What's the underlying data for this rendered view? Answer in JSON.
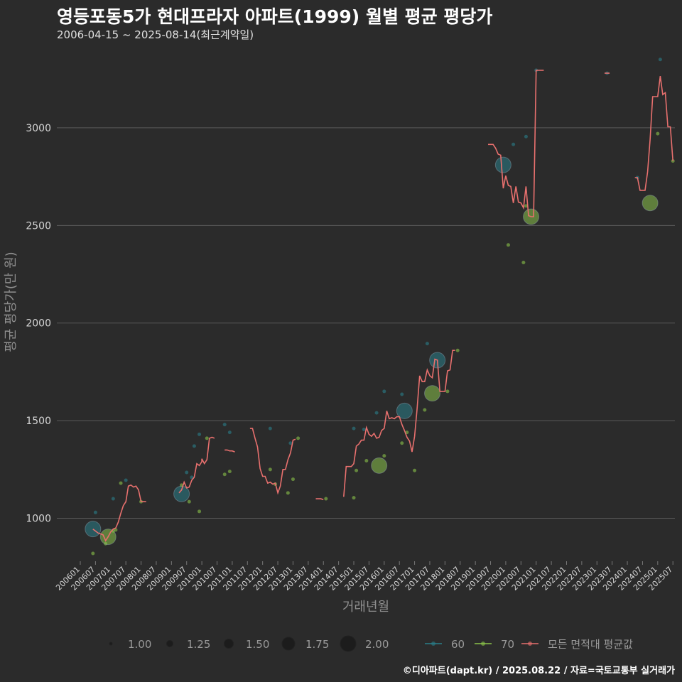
{
  "title": "영등포동5가 현대프라자 아파트(1999) 월별 평균 평당가",
  "subtitle": "2006-04-15 ~ 2025-08-14(최근계약일)",
  "credit": "©디아파트(dapt.kr) / 2025.08.22 / 자료=국토교통부 실거래가",
  "colors": {
    "background": "#2b2b2b",
    "grid": "#5a5a5a",
    "s60": "#2a7f8a",
    "s70": "#8bc34a",
    "avg": "#e8706e"
  },
  "legend": {
    "size_items": [
      {
        "label": "1.00"
      },
      {
        "label": "1.25"
      },
      {
        "label": "1.50"
      },
      {
        "label": "1.75"
      },
      {
        "label": "2.00"
      }
    ],
    "series_items": [
      {
        "label": "60"
      },
      {
        "label": "70"
      },
      {
        "label": "모든 면적대 평균값"
      }
    ]
  },
  "chart_data": {
    "type": "line",
    "title": "영등포동5가 현대프라자 아파트(1999) 월별 평균 평당가",
    "xlabel": "거래년월",
    "ylabel": "평균 평당가(만 원)",
    "ylim": [
      780,
      3400
    ],
    "yticks": [
      1000,
      1500,
      2000,
      2500,
      3000
    ],
    "xticks": [
      "200601",
      "200607",
      "200701",
      "200707",
      "200801",
      "200807",
      "200901",
      "200907",
      "201001",
      "201007",
      "201101",
      "201107",
      "201201",
      "201207",
      "201301",
      "201307",
      "201401",
      "201407",
      "201501",
      "201507",
      "201601",
      "201607",
      "201701",
      "201707",
      "201801",
      "201807",
      "201901",
      "201907",
      "202001",
      "202007",
      "202101",
      "202107",
      "202201",
      "202207",
      "202301",
      "202307",
      "202401",
      "202407",
      "202501",
      "202507"
    ],
    "grid": true,
    "legend_position": "bottom",
    "series": [
      {
        "name": "60",
        "points": [
          [
            "2006-06",
            945,
            2
          ],
          [
            "2006-07",
            1030,
            1
          ],
          [
            "2007-02",
            1100,
            1
          ],
          [
            "2007-07",
            1195,
            1
          ],
          [
            "2009-05",
            1125,
            2
          ],
          [
            "2009-07",
            1235,
            1
          ],
          [
            "2009-09",
            1210,
            1
          ],
          [
            "2009-10",
            1370,
            1
          ],
          [
            "2009-12",
            1430,
            1
          ],
          [
            "2010-10",
            1480,
            1
          ],
          [
            "2010-12",
            1440,
            1
          ],
          [
            "2012-04",
            1460,
            1
          ],
          [
            "2012-12",
            1385,
            1
          ],
          [
            "2015-01",
            1460,
            1
          ],
          [
            "2015-05",
            1455,
            1
          ],
          [
            "2015-10",
            1540,
            1
          ],
          [
            "2016-01",
            1650,
            1
          ],
          [
            "2016-08",
            1635,
            1
          ],
          [
            "2016-09",
            1550,
            2
          ],
          [
            "2017-06",
            1895,
            1
          ],
          [
            "2017-10",
            1810,
            2
          ],
          [
            "2019-12",
            2810,
            2
          ],
          [
            "2020-04",
            2915,
            1
          ],
          [
            "2020-09",
            2955,
            1
          ],
          [
            "2021-01",
            3295,
            1
          ],
          [
            "2023-05",
            3280,
            1
          ],
          [
            "2024-05",
            2745,
            1
          ],
          [
            "2025-02",
            3350,
            1
          ]
        ]
      },
      {
        "name": "70",
        "points": [
          [
            "2006-06",
            820,
            1
          ],
          [
            "2006-11",
            870,
            1
          ],
          [
            "2006-12",
            905,
            2
          ],
          [
            "2007-02",
            935,
            1
          ],
          [
            "2007-03",
            940,
            1
          ],
          [
            "2007-05",
            1180,
            1
          ],
          [
            "2008-01",
            1085,
            1
          ],
          [
            "2009-05",
            1170,
            1
          ],
          [
            "2009-08",
            1085,
            1
          ],
          [
            "2009-12",
            1035,
            1
          ],
          [
            "2010-03",
            1410,
            1
          ],
          [
            "2010-10",
            1225,
            1
          ],
          [
            "2010-12",
            1240,
            1
          ],
          [
            "2012-04",
            1250,
            1
          ],
          [
            "2012-06",
            1175,
            1
          ],
          [
            "2012-11",
            1130,
            1
          ],
          [
            "2013-01",
            1200,
            1
          ],
          [
            "2013-03",
            1410,
            1
          ],
          [
            "2014-02",
            1100,
            1
          ],
          [
            "2015-01",
            1105,
            1
          ],
          [
            "2015-02",
            1245,
            1
          ],
          [
            "2015-06",
            1295,
            1
          ],
          [
            "2015-11",
            1270,
            2
          ],
          [
            "2016-01",
            1320,
            1
          ],
          [
            "2016-08",
            1385,
            1
          ],
          [
            "2016-10",
            1440,
            1
          ],
          [
            "2017-01",
            1245,
            1
          ],
          [
            "2017-05",
            1555,
            1
          ],
          [
            "2017-08",
            1640,
            2
          ],
          [
            "2018-02",
            1650,
            1
          ],
          [
            "2018-06",
            1860,
            1
          ],
          [
            "2020-02",
            2400,
            1
          ],
          [
            "2020-08",
            2310,
            1
          ],
          [
            "2020-09",
            2600,
            1
          ],
          [
            "2020-11",
            2545,
            2
          ],
          [
            "2024-10",
            2615,
            2
          ],
          [
            "2025-01",
            2970,
            1
          ],
          [
            "2025-07",
            2830,
            1
          ]
        ]
      },
      {
        "name": "모든 면적대 평균값",
        "points": [
          [
            "2006-06",
            945
          ],
          [
            "2006-08",
            925
          ],
          [
            "2006-10",
            915
          ],
          [
            "2006-11",
            885
          ],
          [
            "2006-12",
            905
          ],
          [
            "2007-01",
            930
          ],
          [
            "2007-02",
            945
          ],
          [
            "2007-03",
            950
          ],
          [
            "2007-04",
            980
          ],
          [
            "2007-05",
            1025
          ],
          [
            "2007-06",
            1065
          ],
          [
            "2007-07",
            1085
          ],
          [
            "2007-08",
            1165
          ],
          [
            "2007-09",
            1170
          ],
          [
            "2007-10",
            1160
          ],
          [
            "2007-11",
            1165
          ],
          [
            "2007-12",
            1145
          ],
          [
            "2008-01",
            1085
          ],
          [
            "2008-02",
            1085
          ],
          [
            "2008-03",
            1085
          ],
          null,
          [
            "2009-04",
            1130
          ],
          [
            "2009-05",
            1145
          ],
          [
            "2009-06",
            1185
          ],
          [
            "2009-07",
            1155
          ],
          [
            "2009-08",
            1160
          ],
          [
            "2009-09",
            1195
          ],
          [
            "2009-10",
            1210
          ],
          [
            "2009-11",
            1280
          ],
          [
            "2009-12",
            1270
          ],
          [
            "2009-13",
            1290
          ],
          [
            "2010-01",
            1305
          ],
          [
            "2010-02",
            1280
          ],
          [
            "2010-03",
            1300
          ],
          [
            "2010-04",
            1410
          ],
          [
            "2010-05",
            1415
          ],
          [
            "2010-06",
            1410
          ],
          null,
          [
            "2010-10",
            1350
          ],
          [
            "2010-11",
            1350
          ],
          [
            "2010-12",
            1345
          ],
          [
            "2011-01",
            1345
          ],
          [
            "2011-02",
            1340
          ],
          null,
          [
            "2011-08",
            1460
          ],
          [
            "2011-09",
            1460
          ],
          [
            "2011-10",
            1410
          ],
          [
            "2011-11",
            1365
          ],
          [
            "2011-12",
            1255
          ],
          [
            "2012-01",
            1215
          ],
          [
            "2012-02",
            1215
          ],
          [
            "2012-03",
            1180
          ],
          [
            "2012-04",
            1185
          ],
          [
            "2012-05",
            1175
          ],
          [
            "2012-06",
            1180
          ],
          [
            "2012-07",
            1130
          ],
          [
            "2012-08",
            1165
          ],
          [
            "2012-09",
            1250
          ],
          [
            "2012-10",
            1250
          ],
          [
            "2012-11",
            1300
          ],
          [
            "2012-12",
            1335
          ],
          [
            "2013-01",
            1400
          ],
          [
            "2013-02",
            1405
          ],
          null,
          [
            "2013-10",
            1100
          ],
          [
            "2013-11",
            1100
          ],
          [
            "2013-12",
            1100
          ],
          [
            "2014-01",
            1095
          ],
          null,
          [
            "2014-09",
            1110
          ],
          [
            "2014-10",
            1265
          ],
          [
            "2014-11",
            1265
          ],
          [
            "2014-12",
            1265
          ],
          [
            "2015-01",
            1280
          ],
          [
            "2015-02",
            1370
          ],
          [
            "2015-03",
            1380
          ],
          [
            "2015-04",
            1400
          ],
          [
            "2015-05",
            1400
          ],
          [
            "2015-06",
            1465
          ],
          [
            "2015-07",
            1430
          ],
          [
            "2015-08",
            1420
          ],
          [
            "2015-09",
            1435
          ],
          [
            "2015-10",
            1410
          ],
          [
            "2015-11",
            1415
          ],
          [
            "2015-12",
            1450
          ],
          [
            "2016-01",
            1460
          ],
          [
            "2016-02",
            1550
          ],
          [
            "2016-03",
            1510
          ],
          [
            "2016-04",
            1515
          ],
          [
            "2016-05",
            1510
          ],
          [
            "2016-06",
            1520
          ],
          [
            "2016-07",
            1520
          ],
          [
            "2016-08",
            1480
          ],
          [
            "2016-09",
            1450
          ],
          [
            "2016-10",
            1415
          ],
          [
            "2016-11",
            1395
          ],
          [
            "2016-12",
            1340
          ],
          [
            "2017-01",
            1420
          ],
          [
            "2017-02",
            1560
          ],
          [
            "2017-03",
            1730
          ],
          [
            "2017-04",
            1700
          ],
          [
            "2017-05",
            1700
          ],
          [
            "2017-06",
            1760
          ],
          [
            "2017-07",
            1730
          ],
          [
            "2017-08",
            1720
          ],
          [
            "2017-09",
            1815
          ],
          [
            "2017-10",
            1810
          ],
          [
            "2017-11",
            1650
          ],
          [
            "2017-12",
            1650
          ],
          [
            "2018-01",
            1650
          ],
          [
            "2018-02",
            1755
          ],
          [
            "2018-03",
            1760
          ],
          [
            "2018-04",
            1860
          ],
          [
            "2018-05",
            1860
          ],
          null,
          [
            "2019-06",
            2915
          ],
          [
            "2019-07",
            2915
          ],
          [
            "2019-08",
            2915
          ],
          [
            "2019-09",
            2895
          ],
          [
            "2019-10",
            2865
          ],
          [
            "2019-11",
            2860
          ],
          [
            "2019-12",
            2690
          ],
          [
            "2020-01",
            2755
          ],
          [
            "2020-02",
            2705
          ],
          [
            "2020-03",
            2700
          ],
          [
            "2020-04",
            2615
          ],
          [
            "2020-05",
            2700
          ],
          [
            "2020-06",
            2620
          ],
          [
            "2020-07",
            2615
          ],
          [
            "2020-08",
            2590
          ],
          [
            "2020-09",
            2700
          ],
          [
            "2020-10",
            2550
          ],
          [
            "2020-11",
            2545
          ],
          [
            "2020-12",
            2545
          ],
          [
            "2021-01",
            3295
          ],
          [
            "2021-02",
            3295
          ],
          [
            "2021-03",
            3295
          ],
          [
            "2021-04",
            3295
          ],
          null,
          [
            "2023-04",
            3280
          ],
          [
            "2023-05",
            3280
          ],
          [
            "2023-06",
            3280
          ],
          null,
          [
            "2024-04",
            2745
          ],
          [
            "2024-05",
            2745
          ],
          [
            "2024-06",
            2680
          ],
          [
            "2024-07",
            2680
          ],
          [
            "2024-08",
            2680
          ],
          [
            "2024-09",
            2775
          ],
          [
            "2024-10",
            2940
          ],
          [
            "2024-11",
            3160
          ],
          [
            "2024-12",
            3160
          ],
          [
            "2025-01",
            3160
          ],
          [
            "2025-02",
            3265
          ],
          [
            "2025-03",
            3170
          ],
          [
            "2025-04",
            3180
          ],
          [
            "2025-05",
            3005
          ],
          [
            "2025-06",
            3005
          ],
          [
            "2025-07",
            2830
          ]
        ]
      }
    ]
  }
}
